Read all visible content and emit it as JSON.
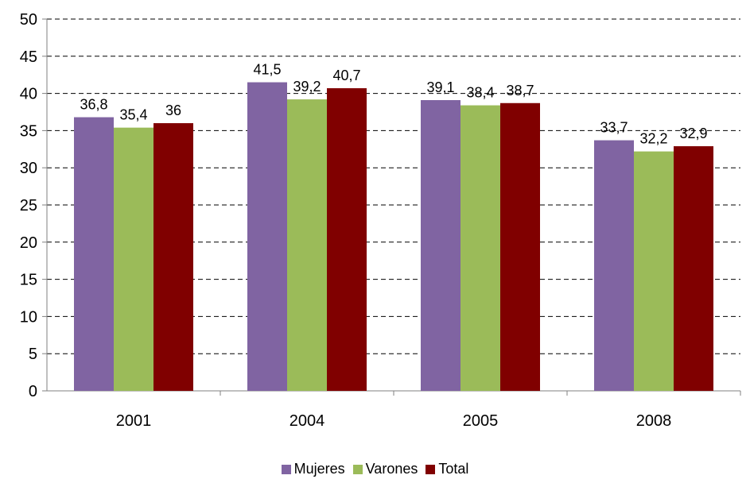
{
  "chart_data": {
    "type": "bar",
    "categories": [
      "2001",
      "2004",
      "2005",
      "2008"
    ],
    "series": [
      {
        "name": "Mujeres",
        "values": [
          36.8,
          41.5,
          39.1,
          33.7
        ],
        "labels": [
          "36,8",
          "41,5",
          "39,1",
          "33,7"
        ],
        "color": "#8064A2"
      },
      {
        "name": "Varones",
        "values": [
          35.4,
          39.2,
          38.4,
          32.2
        ],
        "labels": [
          "35,4",
          "39,2",
          "38,4",
          "32,2"
        ],
        "color": "#9BBB59"
      },
      {
        "name": "Total",
        "values": [
          36,
          40.7,
          38.7,
          32.9
        ],
        "labels": [
          "36",
          "40,7",
          "38,7",
          "32,9"
        ],
        "color": "#800000"
      }
    ],
    "title": "",
    "xlabel": "",
    "ylabel": "",
    "ylim": [
      0,
      50
    ],
    "yticks": [
      "0",
      "5",
      "10",
      "15",
      "20",
      "25",
      "30",
      "35",
      "40",
      "45",
      "50"
    ],
    "grid": true,
    "legend_position": "bottom-center"
  }
}
